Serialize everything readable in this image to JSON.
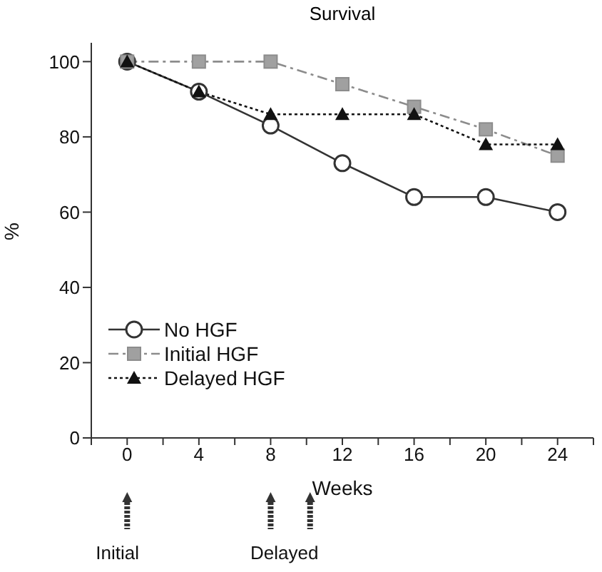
{
  "chart_data": {
    "type": "line",
    "title": "Survival",
    "xlabel": "Weeks",
    "ylabel": "%",
    "x": [
      0,
      4,
      8,
      12,
      16,
      20,
      24
    ],
    "series": [
      {
        "name": "No HGF",
        "color": "#333333",
        "values": [
          100,
          92,
          83,
          73,
          64,
          64,
          60
        ],
        "marker": "circle",
        "line_style": "solid"
      },
      {
        "name": "Initial HGF",
        "color": "#8c8c8c",
        "values": [
          100,
          100,
          100,
          94,
          88,
          82,
          75
        ],
        "marker": "square",
        "line_style": "dashed"
      },
      {
        "name": "Delayed HGF",
        "color": "#111111",
        "values": [
          100,
          92,
          86,
          86,
          86,
          78,
          78
        ],
        "marker": "triangle",
        "line_style": "dotted"
      }
    ],
    "xlim": [
      -2,
      26
    ],
    "xticks": [
      {
        "value": -2,
        "label": null
      },
      0,
      {
        "value": 2,
        "label": null
      },
      4,
      {
        "value": 6,
        "label": null
      },
      8,
      {
        "value": 10,
        "label": null
      },
      12,
      {
        "value": 14,
        "label": null
      },
      16,
      {
        "value": 18,
        "label": null
      },
      20,
      {
        "value": 22,
        "label": null
      },
      24,
      {
        "value": 26,
        "label": null
      }
    ],
    "ylim": [
      0,
      105
    ],
    "yticks": [
      0,
      20,
      40,
      60,
      80,
      100
    ],
    "grid": false,
    "legend": "bottom left",
    "annotations": [
      "Initial",
      "Delayed"
    ]
  }
}
